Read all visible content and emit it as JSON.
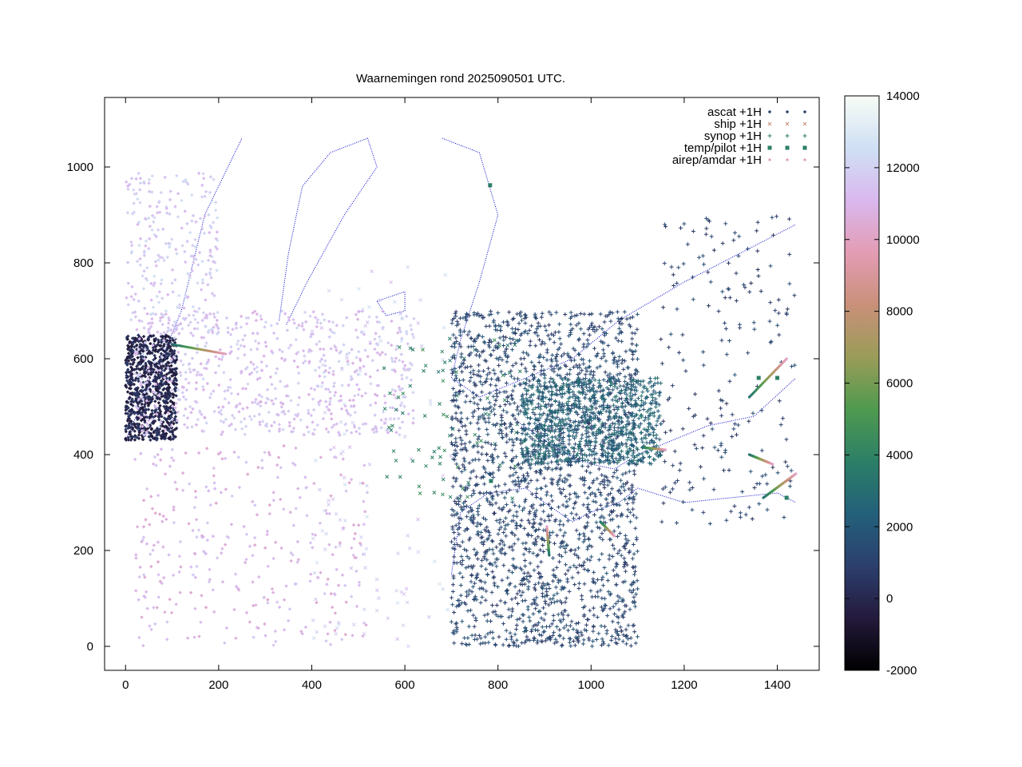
{
  "chart_data": {
    "type": "scatter",
    "title": "Waarnemingen rond 2025090501 UTC.",
    "xlabel": "",
    "ylabel": "",
    "xlim": [
      -45,
      1490
    ],
    "ylim": [
      -50,
      1145
    ],
    "x_ticks": [
      0,
      200,
      400,
      600,
      800,
      1000,
      1200,
      1400
    ],
    "y_ticks": [
      0,
      200,
      400,
      600,
      800,
      1000
    ],
    "grid": false,
    "legend_position": "top-right",
    "colorbar": {
      "range": [
        -2000,
        14000
      ],
      "ticks": [
        -2000,
        0,
        2000,
        4000,
        6000,
        8000,
        10000,
        12000,
        14000
      ],
      "stops": [
        "#000000",
        "#241a3c",
        "#2c3f6e",
        "#23607a",
        "#2c7f67",
        "#4f9a4f",
        "#9a9c58",
        "#c9907a",
        "#e39cb4",
        "#d9b8ee",
        "#cfe0f4",
        "#f8fcf6"
      ]
    },
    "coastline_color": "#0000cc",
    "series": [
      {
        "name": "ascat +1H",
        "marker": "diamond",
        "color": "#2c3f6e",
        "regions": [
          {
            "x": [
              0,
              110
            ],
            "y": [
              430,
              650
            ],
            "value": 0,
            "density": 900
          },
          {
            "x": [
              20,
              620
            ],
            "y": [
              440,
              700
            ],
            "value": 11500,
            "density": 700
          },
          {
            "x": [
              20,
              520
            ],
            "y": [
              0,
              420
            ],
            "value": 11000,
            "density": 320
          },
          {
            "x": [
              0,
              200
            ],
            "y": [
              650,
              990
            ],
            "value": 11800,
            "density": 260
          }
        ]
      },
      {
        "name": "ship +1H",
        "marker": "cross",
        "color": "#c9907a",
        "regions": [
          {
            "x": [
              400,
              700
            ],
            "y": [
              0,
              800
            ],
            "value": 12000,
            "density": 120
          },
          {
            "x": [
              550,
              850
            ],
            "y": [
              300,
              650
            ],
            "value": 4000,
            "density": 80
          }
        ]
      },
      {
        "name": "synop +1H",
        "marker": "plus",
        "color": "#2c7f67",
        "regions": [
          {
            "x": [
              700,
              1100
            ],
            "y": [
              0,
              700
            ],
            "value": 1200,
            "density": 2200
          },
          {
            "x": [
              850,
              1150
            ],
            "y": [
              380,
              560
            ],
            "value": 2500,
            "density": 900
          },
          {
            "x": [
              1150,
              1440
            ],
            "y": [
              250,
              900
            ],
            "value": 1000,
            "density": 200
          }
        ]
      },
      {
        "name": "temp/pilot +1H",
        "marker": "square",
        "color": "#2c7f67",
        "points": [
          [
            783,
            962
          ],
          [
            1360,
            560
          ],
          [
            1400,
            560
          ],
          [
            785,
            345
          ],
          [
            1420,
            310
          ]
        ]
      },
      {
        "name": "airep/amdar +1H",
        "marker": "dot",
        "color": "#e39cb4",
        "tracks": [
          [
            [
              100,
              630
            ],
            [
              215,
              610
            ]
          ],
          [
            [
              910,
              190
            ],
            [
              905,
              250
            ]
          ],
          [
            [
              1020,
              260
            ],
            [
              1050,
              230
            ]
          ],
          [
            [
              1340,
              520
            ],
            [
              1420,
              600
            ]
          ],
          [
            [
              1110,
              415
            ],
            [
              1160,
              410
            ]
          ],
          [
            [
              1340,
              400
            ],
            [
              1390,
              380
            ]
          ],
          [
            [
              1370,
              310
            ],
            [
              1440,
              360
            ]
          ]
        ]
      }
    ]
  }
}
